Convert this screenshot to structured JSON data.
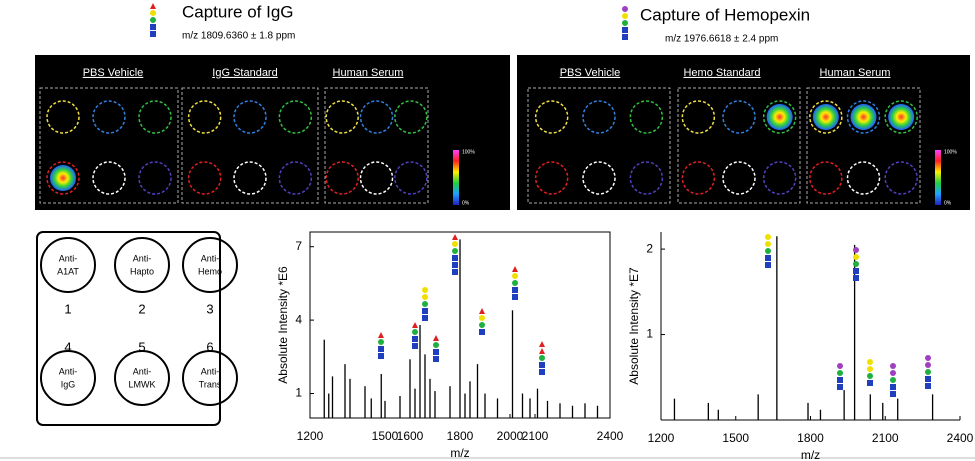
{
  "headers": [
    {
      "title": "Capture of IgG",
      "subtitle": "m/z 1809.6360 ± 1.8 ppm"
    },
    {
      "title": "Capture of Hemopexin",
      "subtitle": "m/z 1976.6618 ± 2.4 ppm"
    }
  ],
  "panels": [
    {
      "labels": [
        "PBS Vehicle",
        "IgG Standard",
        "Human Serum"
      ],
      "scale": [
        "100%",
        "0%"
      ]
    },
    {
      "labels": [
        "PBS Vehicle",
        "Hemo Standard",
        "Human Serum"
      ],
      "scale": [
        "100%",
        "0%"
      ]
    }
  ],
  "diagram": {
    "wells": [
      {
        "lines": [
          "Anti-",
          "A1AT"
        ],
        "number": "1"
      },
      {
        "lines": [
          "Anti-",
          "Hapto"
        ],
        "number": "2"
      },
      {
        "lines": [
          "Anti-",
          "Hemo"
        ],
        "number": "3"
      },
      {
        "lines": [
          "Anti-",
          "IgG"
        ],
        "number": "4"
      },
      {
        "lines": [
          "Anti-",
          "LMWK"
        ],
        "number": "5"
      },
      {
        "lines": [
          "Anti-",
          "Trans"
        ],
        "number": "6"
      }
    ]
  },
  "chart_data": [
    {
      "type": "stem",
      "x_label": "m/z",
      "y_label": "Absolute Intensity *E6",
      "x": [
        1257,
        1275,
        1290,
        1340,
        1360,
        1420,
        1445,
        1485,
        1500,
        1560,
        1600,
        1620,
        1640,
        1660,
        1680,
        1700,
        1760,
        1800,
        1820,
        1840,
        1870,
        1900,
        1950,
        2010,
        2050,
        2080,
        2110,
        2150,
        2200,
        2250,
        2300,
        2350
      ],
      "values": [
        3.2,
        1.0,
        1.7,
        2.2,
        1.6,
        1.3,
        0.8,
        1.8,
        0.7,
        0.9,
        2.4,
        1.2,
        3.8,
        2.6,
        1.6,
        1.1,
        1.3,
        7.3,
        1.0,
        1.5,
        2.2,
        1.0,
        0.8,
        4.4,
        1.0,
        0.8,
        1.2,
        0.7,
        0.6,
        0.5,
        0.6,
        0.5
      ],
      "color": "#000000",
      "xlim": [
        1200,
        2400
      ],
      "xticks": [
        1200,
        1500,
        1600,
        1800,
        2000,
        2100,
        2400
      ],
      "ylim": [
        0,
        7.6
      ],
      "yticks": [
        1,
        4,
        7
      ],
      "frame": "box"
    },
    {
      "type": "stem",
      "x_label": "m/z",
      "y_label": "Absolute Intensity *E7",
      "x": [
        1254,
        1390,
        1430,
        1590,
        1665,
        1790,
        1840,
        1935,
        1977,
        2040,
        2090,
        2150,
        2290
      ],
      "values": [
        0.25,
        0.2,
        0.12,
        0.3,
        2.15,
        0.2,
        0.12,
        0.35,
        2.05,
        0.3,
        0.2,
        0.25,
        0.3
      ],
      "color": "#000000",
      "xlim": [
        1200,
        2400
      ],
      "xticks": [
        1200,
        1500,
        1800,
        2100,
        2400
      ],
      "ylim": [
        0,
        2.2
      ],
      "yticks": [
        1,
        2
      ],
      "frame": "axes"
    }
  ]
}
